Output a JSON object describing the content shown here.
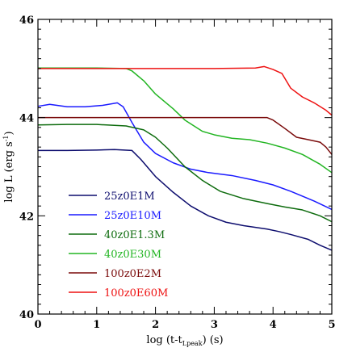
{
  "chart_data": {
    "type": "line",
    "title": "",
    "xlabel": "log (t-t",
    "xlabel_sub": "Lpeak",
    "xlabel_suffix": ") (s)",
    "ylabel": "log L (erg s",
    "ylabel_sup": "-1",
    "ylabel_suffix": ")",
    "xlim": [
      0,
      5
    ],
    "ylim": [
      40,
      46
    ],
    "xticks": [
      0,
      1,
      2,
      3,
      4,
      5
    ],
    "yticks": [
      40,
      42,
      44,
      46
    ],
    "x_tick_labels": [
      "0",
      "1",
      "2",
      "3",
      "4",
      "5"
    ],
    "y_tick_labels": [
      "40",
      "42",
      "44",
      "46"
    ],
    "grid": false,
    "legend_position": "lower-left",
    "series": [
      {
        "name": "25z0E1M",
        "color": "#0d0d6e",
        "points": [
          [
            0,
            43.33
          ],
          [
            0.5,
            43.33
          ],
          [
            1,
            43.34
          ],
          [
            1.3,
            43.35
          ],
          [
            1.6,
            43.33
          ],
          [
            1.75,
            43.15
          ],
          [
            2.0,
            42.8
          ],
          [
            2.3,
            42.48
          ],
          [
            2.6,
            42.2
          ],
          [
            2.9,
            42.0
          ],
          [
            3.2,
            41.87
          ],
          [
            3.5,
            41.8
          ],
          [
            3.9,
            41.73
          ],
          [
            4.1,
            41.68
          ],
          [
            4.3,
            41.62
          ],
          [
            4.6,
            41.52
          ],
          [
            4.8,
            41.4
          ],
          [
            5.0,
            41.3
          ]
        ]
      },
      {
        "name": "25z0E10M",
        "color": "#1a1aff",
        "points": [
          [
            0,
            44.23
          ],
          [
            0.2,
            44.27
          ],
          [
            0.5,
            44.22
          ],
          [
            0.8,
            44.22
          ],
          [
            1.1,
            44.25
          ],
          [
            1.35,
            44.3
          ],
          [
            1.45,
            44.22
          ],
          [
            1.6,
            43.9
          ],
          [
            1.8,
            43.5
          ],
          [
            2.0,
            43.27
          ],
          [
            2.3,
            43.08
          ],
          [
            2.6,
            42.95
          ],
          [
            2.9,
            42.88
          ],
          [
            3.3,
            42.82
          ],
          [
            3.7,
            42.72
          ],
          [
            4.0,
            42.63
          ],
          [
            4.3,
            42.5
          ],
          [
            4.7,
            42.3
          ],
          [
            5.0,
            42.13
          ]
        ]
      },
      {
        "name": "40z0E1.3M",
        "color": "#0d6b0d",
        "points": [
          [
            0,
            43.85
          ],
          [
            0.5,
            43.86
          ],
          [
            1,
            43.86
          ],
          [
            1.5,
            43.83
          ],
          [
            1.8,
            43.75
          ],
          [
            2.0,
            43.6
          ],
          [
            2.2,
            43.38
          ],
          [
            2.5,
            43.0
          ],
          [
            2.8,
            42.72
          ],
          [
            3.1,
            42.5
          ],
          [
            3.5,
            42.35
          ],
          [
            3.9,
            42.25
          ],
          [
            4.2,
            42.18
          ],
          [
            4.5,
            42.12
          ],
          [
            4.8,
            42.0
          ],
          [
            5.0,
            41.88
          ]
        ]
      },
      {
        "name": "40z0E30M",
        "color": "#22b522",
        "points": [
          [
            0,
            45.01
          ],
          [
            1.0,
            45.01
          ],
          [
            1.5,
            45.0
          ],
          [
            1.6,
            44.95
          ],
          [
            1.8,
            44.75
          ],
          [
            2.0,
            44.48
          ],
          [
            2.3,
            44.18
          ],
          [
            2.5,
            43.95
          ],
          [
            2.8,
            43.72
          ],
          [
            3.0,
            43.65
          ],
          [
            3.3,
            43.58
          ],
          [
            3.6,
            43.55
          ],
          [
            3.9,
            43.48
          ],
          [
            4.2,
            43.38
          ],
          [
            4.5,
            43.25
          ],
          [
            4.8,
            43.05
          ],
          [
            5.0,
            42.88
          ]
        ]
      },
      {
        "name": "100z0E2M",
        "color": "#7a0a0a",
        "points": [
          [
            0,
            44.0
          ],
          [
            1,
            44.0
          ],
          [
            2,
            44.0
          ],
          [
            3,
            44.0
          ],
          [
            3.9,
            44.0
          ],
          [
            4.0,
            43.95
          ],
          [
            4.2,
            43.78
          ],
          [
            4.4,
            43.6
          ],
          [
            4.6,
            43.55
          ],
          [
            4.8,
            43.5
          ],
          [
            4.9,
            43.4
          ],
          [
            5.0,
            43.25
          ]
        ]
      },
      {
        "name": "100z0E60M",
        "color": "#ee1111",
        "points": [
          [
            0,
            45.0
          ],
          [
            1,
            45.0
          ],
          [
            2,
            45.0
          ],
          [
            3,
            45.0
          ],
          [
            3.7,
            45.01
          ],
          [
            3.85,
            45.04
          ],
          [
            4.0,
            44.98
          ],
          [
            4.15,
            44.9
          ],
          [
            4.3,
            44.6
          ],
          [
            4.5,
            44.42
          ],
          [
            4.7,
            44.3
          ],
          [
            4.9,
            44.15
          ],
          [
            5.0,
            44.05
          ]
        ]
      }
    ]
  }
}
